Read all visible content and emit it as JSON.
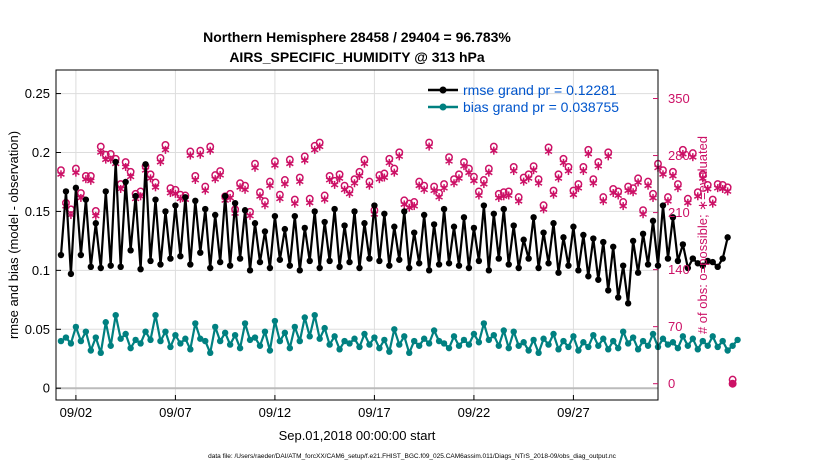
{
  "chart_data": {
    "type": "line",
    "title_line1": "Northern Hemisphere 28458 / 29404 = 96.783%",
    "title_line2": "AIRS_SPECIFIC_HUMIDITY @ 313 hPa",
    "xlabel": "Sep.01,2018 00:00:00 start",
    "ylabel": "rmse and bias (model - observation)",
    "ylabel_right": "# of obs: o=possible; ∗=evaluated",
    "x_ticks": [
      "09/02",
      "09/07",
      "09/12",
      "09/17",
      "09/22",
      "09/27"
    ],
    "x_tick_days": [
      2,
      7,
      12,
      17,
      22,
      27
    ],
    "xlim": [
      1.0,
      31.25
    ],
    "ylim": [
      -0.01,
      0.27
    ],
    "y_ticks": [
      "0",
      "0.05",
      "0.1",
      "0.15",
      "0.2",
      "0.25"
    ],
    "y_tick_values": [
      0,
      0.05,
      0.1,
      0.15,
      0.2,
      0.25
    ],
    "ylim_right": [
      -20,
      385
    ],
    "y_ticks_right": [
      "0",
      "70",
      "140",
      "210",
      "280",
      "350"
    ],
    "y_tick_values_right": [
      0,
      70,
      140,
      210,
      280,
      350
    ],
    "legend": {
      "rmse_label": "rmse grand pr = 0.12281",
      "bias_label": "bias grand pr = 0.038755",
      "position": "top-right"
    },
    "colors": {
      "rmse": "#000000",
      "bias": "#008080",
      "counts": "#cc1166",
      "grid": "#dddddd",
      "legend_text": "#0055cc"
    },
    "series": [
      {
        "name": "rmse",
        "start_day": 1.25,
        "step_days": 0.25,
        "values": [
          0.113,
          0.167,
          0.097,
          0.17,
          0.113,
          0.16,
          0.103,
          0.14,
          0.102,
          0.167,
          0.104,
          0.192,
          0.103,
          0.175,
          0.117,
          0.163,
          0.101,
          0.19,
          0.108,
          0.16,
          0.105,
          0.15,
          0.11,
          0.155,
          0.112,
          0.162,
          0.105,
          0.159,
          0.115,
          0.152,
          0.102,
          0.147,
          0.107,
          0.163,
          0.104,
          0.157,
          0.11,
          0.151,
          0.1,
          0.14,
          0.107,
          0.133,
          0.102,
          0.146,
          0.109,
          0.135,
          0.104,
          0.146,
          0.1,
          0.136,
          0.108,
          0.15,
          0.102,
          0.141,
          0.108,
          0.152,
          0.103,
          0.138,
          0.107,
          0.15,
          0.102,
          0.14,
          0.11,
          0.155,
          0.108,
          0.148,
          0.104,
          0.137,
          0.109,
          0.15,
          0.102,
          0.132,
          0.106,
          0.147,
          0.1,
          0.139,
          0.105,
          0.152,
          0.106,
          0.137,
          0.104,
          0.145,
          0.102,
          0.136,
          0.108,
          0.155,
          0.1,
          0.148,
          0.11,
          0.152,
          0.105,
          0.138,
          0.102,
          0.126,
          0.11,
          0.145,
          0.102,
          0.132,
          0.106,
          0.14,
          0.098,
          0.128,
          0.104,
          0.137,
          0.1,
          0.13,
          0.095,
          0.127,
          0.092,
          0.124,
          0.083,
          0.12,
          0.077,
          0.104,
          0.072,
          0.125,
          0.098,
          0.131,
          0.105,
          0.142,
          0.104,
          0.155,
          0.11,
          0.145,
          0.108,
          0.122,
          0.102,
          0.11,
          0.106,
          0.104,
          0.108,
          0.107,
          0.103,
          0.11,
          0.128
        ]
      },
      {
        "name": "bias",
        "start_day": 1.25,
        "step_days": 0.25,
        "values": [
          0.04,
          0.043,
          0.038,
          0.052,
          0.04,
          0.048,
          0.032,
          0.043,
          0.03,
          0.056,
          0.036,
          0.062,
          0.042,
          0.046,
          0.034,
          0.041,
          0.038,
          0.048,
          0.041,
          0.062,
          0.04,
          0.048,
          0.035,
          0.045,
          0.038,
          0.042,
          0.033,
          0.055,
          0.042,
          0.04,
          0.03,
          0.052,
          0.04,
          0.047,
          0.037,
          0.045,
          0.034,
          0.055,
          0.041,
          0.043,
          0.036,
          0.048,
          0.032,
          0.057,
          0.04,
          0.047,
          0.034,
          0.052,
          0.04,
          0.06,
          0.044,
          0.062,
          0.042,
          0.051,
          0.037,
          0.044,
          0.033,
          0.04,
          0.038,
          0.042,
          0.035,
          0.046,
          0.037,
          0.043,
          0.034,
          0.041,
          0.031,
          0.05,
          0.037,
          0.044,
          0.03,
          0.04,
          0.036,
          0.042,
          0.038,
          0.049,
          0.04,
          0.038,
          0.034,
          0.044,
          0.036,
          0.041,
          0.037,
          0.046,
          0.039,
          0.055,
          0.041,
          0.045,
          0.036,
          0.049,
          0.034,
          0.048,
          0.036,
          0.039,
          0.032,
          0.041,
          0.03,
          0.042,
          0.037,
          0.046,
          0.033,
          0.04,
          0.035,
          0.044,
          0.032,
          0.039,
          0.035,
          0.045,
          0.036,
          0.042,
          0.033,
          0.04,
          0.034,
          0.048,
          0.038,
          0.043,
          0.033,
          0.04,
          0.036,
          0.046,
          0.035,
          0.042,
          0.037,
          0.039,
          0.034,
          0.044,
          0.036,
          0.042,
          0.033,
          0.04,
          0.036,
          0.044,
          0.035,
          0.04,
          0.032,
          0.036,
          0.041
        ]
      }
    ],
    "counts": {
      "start_day": 1.25,
      "step_days": 0.25,
      "possible": [
        262,
        222,
        214,
        264,
        234,
        255,
        255,
        212,
        291,
        281,
        282,
        276,
        245,
        272,
        260,
        233,
        236,
        267,
        257,
        247,
        277,
        293,
        240,
        238,
        232,
        231,
        285,
        255,
        286,
        242,
        291,
        256,
        261,
        230,
        233,
        214,
        246,
        243,
        211,
        270,
        235,
        224,
        248,
        273,
        232,
        250,
        275,
        226,
        253,
        279,
        227,
        292,
        296,
        231,
        255,
        249,
        257,
        243,
        238,
        251,
        260,
        275,
        248,
        213,
        256,
        258,
        276,
        264,
        284,
        225,
        221,
        223,
        248,
        243,
        296,
        242,
        234,
        245,
        278,
        251,
        257,
        272,
        264,
        254,
        236,
        250,
        264,
        291,
        233,
        235,
        236,
        266,
        229,
        253,
        257,
        267,
        251,
        219,
        290,
        237,
        257,
        276,
        266,
        237,
        245,
        266,
        287,
        251,
        272,
        229,
        284,
        239,
        236,
        223,
        242,
        240,
        252,
        213,
        248,
        233,
        270,
        262,
        229,
        260,
        245,
        287,
        227,
        283,
        235,
        257,
        244,
        226,
        245,
        244,
        241,
        5
      ],
      "evaluated": [
        257,
        218,
        207,
        259,
        228,
        251,
        249,
        206,
        284,
        275,
        275,
        270,
        239,
        266,
        254,
        227,
        230,
        262,
        252,
        241,
        272,
        287,
        234,
        233,
        227,
        226,
        280,
        250,
        281,
        237,
        286,
        251,
        256,
        225,
        228,
        209,
        241,
        238,
        206,
        265,
        230,
        219,
        243,
        268,
        227,
        245,
        270,
        221,
        248,
        274,
        222,
        287,
        291,
        226,
        250,
        244,
        252,
        238,
        233,
        246,
        255,
        270,
        243,
        208,
        251,
        253,
        271,
        259,
        279,
        220,
        216,
        218,
        243,
        238,
        291,
        237,
        229,
        240,
        273,
        246,
        252,
        267,
        259,
        249,
        231,
        245,
        259,
        286,
        228,
        230,
        231,
        261,
        224,
        248,
        252,
        262,
        246,
        214,
        285,
        232,
        252,
        271,
        261,
        232,
        240,
        261,
        282,
        246,
        267,
        224,
        279,
        234,
        231,
        218,
        237,
        235,
        247,
        208,
        243,
        228,
        265,
        257,
        224,
        255,
        240,
        282,
        222,
        278,
        230,
        252,
        239,
        221,
        240,
        239,
        236,
        0
      ]
    }
  },
  "footer": "data file: /Users/raeder/DAI/ATM_forcXX/CAM6_setup/f.e21.FHIST_BGC.f09_025.CAM6assim.011/Diags_NTrS_2018-09/obs_diag_output.nc"
}
